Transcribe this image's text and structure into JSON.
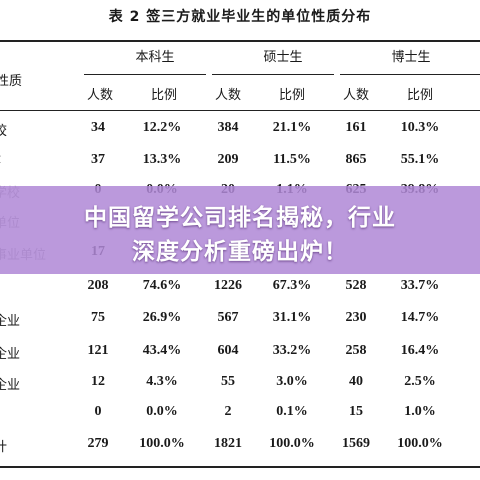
{
  "document": {
    "title": "表 2 签三方就业毕业生的单位性质分布",
    "row_header_label": "性质",
    "groups": [
      "本科生",
      "硕士生",
      "博士生"
    ],
    "sub_headers": [
      "人数",
      "比例",
      "人数",
      "比例",
      "人数",
      "比例"
    ],
    "rows": [
      {
        "label": "校",
        "values": [
          "34",
          "12.2%",
          "384",
          "21.1%",
          "161",
          "10.3%"
        ]
      },
      {
        "label": "z",
        "values": [
          "37",
          "13.3%",
          "209",
          "11.5%",
          "865",
          "55.1%"
        ]
      },
      {
        "label": "学校",
        "values": [
          "0",
          "0.0%",
          "20",
          "1.1%",
          "625",
          "39.8%"
        ]
      },
      {
        "label": "单位",
        "values": [
          "",
          "",
          "",
          "",
          "",
          ""
        ]
      },
      {
        "label": "事业单位",
        "values": [
          "17",
          "",
          "",
          "",
          "",
          ""
        ]
      },
      {
        "label": "",
        "values": [
          "208",
          "74.6%",
          "1226",
          "67.3%",
          "528",
          "33.7%"
        ]
      },
      {
        "label": "企业",
        "values": [
          "75",
          "26.9%",
          "567",
          "31.1%",
          "230",
          "14.7%"
        ]
      },
      {
        "label": "企业",
        "values": [
          "121",
          "43.4%",
          "604",
          "33.2%",
          "258",
          "16.4%"
        ]
      },
      {
        "label": "企业",
        "values": [
          "12",
          "4.3%",
          "55",
          "3.0%",
          "40",
          "2.5%"
        ]
      },
      {
        "label": "",
        "values": [
          "0",
          "0.0%",
          "2",
          "0.1%",
          "15",
          "1.0%"
        ]
      },
      {
        "label": "计",
        "values": [
          "279",
          "100.0%",
          "1821",
          "100.0%",
          "1569",
          "100.0%"
        ]
      }
    ]
  },
  "banner": {
    "line1": "中国留学公司排名揭秘，行业",
    "line2": "深度分析重磅出炉！"
  }
}
